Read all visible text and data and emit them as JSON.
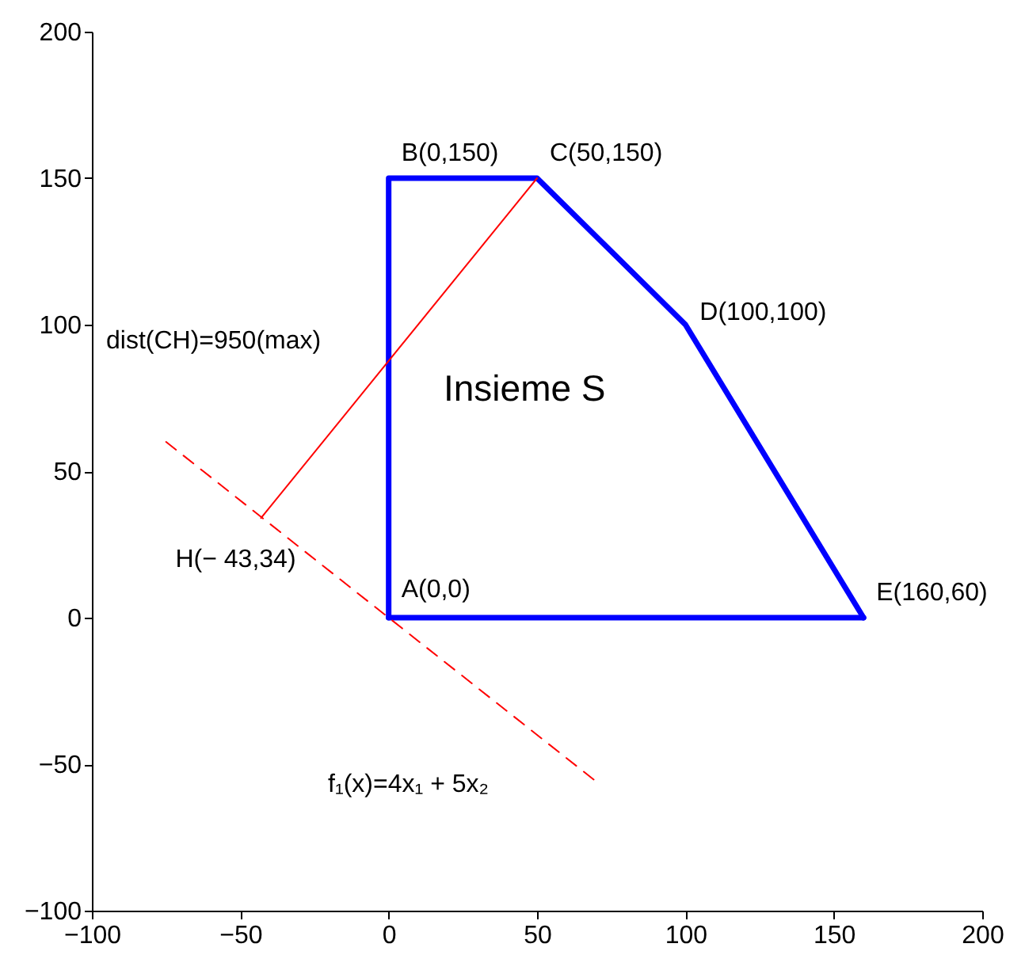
{
  "chart_data": {
    "type": "line",
    "xlim": [
      -100,
      200
    ],
    "xticks": [
      -100,
      -50,
      0,
      50,
      100,
      150,
      200
    ],
    "ylim": [
      -100,
      200
    ],
    "yticks": [
      -100,
      -50,
      0,
      50,
      100,
      150,
      200
    ],
    "grid": false,
    "series": [
      {
        "color": "#0000ff",
        "x": [
          0,
          0,
          50,
          100,
          160
        ],
        "values": [
          0,
          150,
          150,
          100,
          0
        ],
        "line_style": "solid"
      },
      {
        "color": "#0000ff",
        "x": [
          0,
          160
        ],
        "values": [
          0,
          0
        ],
        "line_style": "solid"
      },
      {
        "color": "#ff0000",
        "x": [
          50,
          -43
        ],
        "values": [
          150,
          34
        ],
        "line_style": "solid"
      },
      {
        "color": "#ff0000",
        "x": [
          -75,
          70
        ],
        "values": [
          60,
          -56
        ],
        "line_style": "dashed"
      }
    ],
    "annotations": [
      {
        "text": "B(0,150)",
        "x": 0,
        "y": 150
      },
      {
        "text": "C(50,150)",
        "x": 50,
        "y": 150
      },
      {
        "text": "D(100,100)",
        "x": 100,
        "y": 100
      },
      {
        "text": "E(160,60)",
        "x": 160,
        "y": 0
      },
      {
        "text": "A(0,0)",
        "x": 0,
        "y": 0
      },
      {
        "text": "H(− 43,34)",
        "x": -43,
        "y": 34
      },
      "dist(CH)=950(max)",
      "Insieme S",
      "f₁(x)=4x₁ + 5x₂"
    ]
  }
}
